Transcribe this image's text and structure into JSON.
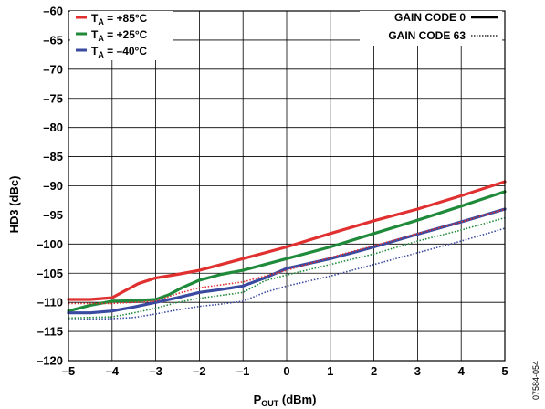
{
  "chart_data": {
    "type": "line",
    "xlabel_main": "P",
    "xlabel_sub": "OUT",
    "xlabel_unit": " (dBm)",
    "ylabel": "HD3 (dBc)",
    "xlim": [
      -5,
      5
    ],
    "ylim": [
      -120,
      -60
    ],
    "x_ticks": [
      -5,
      -4,
      -3,
      -2,
      -1,
      0,
      1,
      2,
      3,
      4,
      5
    ],
    "y_ticks": [
      -120,
      -115,
      -110,
      -105,
      -100,
      -95,
      -90,
      -85,
      -80,
      -75,
      -70,
      -65,
      -60
    ],
    "x_tick_labels": [
      "–5",
      "–4",
      "–3",
      "–2",
      "–1",
      "0",
      "1",
      "2",
      "3",
      "4",
      "5"
    ],
    "y_tick_labels": [
      "–120",
      "–115",
      "–110",
      "–105",
      "–100",
      "–95",
      "–90",
      "–85",
      "–80",
      "–75",
      "–70",
      "–65",
      "–60"
    ],
    "grid": true,
    "legend_temperature": [
      {
        "main": "T",
        "sub": "A",
        "value": " = +85°C",
        "color": "#e03030"
      },
      {
        "main": "T",
        "sub": "A",
        "value": " = +25°C",
        "color": "#1f8a3a"
      },
      {
        "main": "T",
        "sub": "A",
        "value": " = –40°C",
        "color": "#3a4aa0"
      }
    ],
    "legend_gain": [
      {
        "label": "GAIN CODE 0",
        "style": "solid"
      },
      {
        "label": "GAIN CODE 63",
        "style": "dotted"
      }
    ],
    "series": [
      {
        "temp": "+85°C",
        "gain": "GAIN CODE 0",
        "color": "#e03030",
        "style": "solid",
        "x": [
          -5,
          -4.5,
          -4,
          -3.7,
          -3.4,
          -3,
          -2.5,
          -2,
          -1.5,
          -1,
          0,
          1,
          2,
          3,
          4,
          5
        ],
        "y": [
          -109.5,
          -109.5,
          -109.2,
          -108,
          -106.8,
          -105.8,
          -105.2,
          -104.5,
          -103.5,
          -102.5,
          -100.5,
          -98.2,
          -96,
          -94,
          -91.7,
          -89.3
        ]
      },
      {
        "temp": "+25°C",
        "gain": "GAIN CODE 0",
        "color": "#1f8a3a",
        "style": "solid",
        "x": [
          -5,
          -4.5,
          -4,
          -3.5,
          -3,
          -2.7,
          -2.4,
          -2,
          -1.5,
          -1,
          0,
          1,
          2,
          3,
          4,
          5
        ],
        "y": [
          -111.5,
          -110.5,
          -109.8,
          -109.7,
          -109.5,
          -108.7,
          -107.5,
          -106.2,
          -105.2,
          -104.5,
          -102.5,
          -100.5,
          -98.2,
          -95.9,
          -93.5,
          -91
        ]
      },
      {
        "temp": "–40°C",
        "gain": "GAIN CODE 0",
        "color": "#3a4aa0",
        "style": "solid",
        "x": [
          -5,
          -4.5,
          -4,
          -3.5,
          -3,
          -2.5,
          -2,
          -1.5,
          -1,
          -0.5,
          0,
          1,
          2,
          3,
          4,
          5
        ],
        "y": [
          -111.8,
          -111.8,
          -111.5,
          -110.8,
          -110,
          -109.2,
          -108.3,
          -107.8,
          -107.2,
          -105.8,
          -104.2,
          -102.5,
          -100.5,
          -98.3,
          -96.2,
          -94
        ]
      },
      {
        "temp": "+85°C",
        "gain": "GAIN CODE 63",
        "color": "#e03030",
        "style": "dotted",
        "x": [
          -5,
          -4,
          -3.5,
          -3,
          -2.5,
          -2,
          -1.5,
          -1,
          -0.5,
          0,
          1,
          2,
          3,
          4,
          5
        ],
        "y": [
          -110.2,
          -110.2,
          -110,
          -109.8,
          -108.5,
          -107.5,
          -107,
          -106.5,
          -105.5,
          -104.5,
          -102.3,
          -100.3,
          -98.2,
          -96.2,
          -94
        ]
      },
      {
        "temp": "+25°C",
        "gain": "GAIN CODE 63",
        "color": "#1f8a3a",
        "style": "dotted",
        "x": [
          -5,
          -4,
          -3.5,
          -3,
          -2.5,
          -2,
          -1.5,
          -1,
          -0.5,
          0,
          1,
          2,
          3,
          4,
          5
        ],
        "y": [
          -112.7,
          -112.5,
          -111.8,
          -111,
          -110,
          -109.3,
          -108.8,
          -108.3,
          -106.3,
          -105.3,
          -103.5,
          -101.7,
          -99.5,
          -97.6,
          -95.5
        ]
      },
      {
        "temp": "–40°C",
        "gain": "GAIN CODE 63",
        "color": "#3a4aa0",
        "style": "dotted",
        "x": [
          -5,
          -4,
          -3.5,
          -3,
          -2.5,
          -2,
          -1.5,
          -1,
          -0.5,
          0,
          1,
          2,
          3,
          4,
          5
        ],
        "y": [
          -113,
          -112.8,
          -112.6,
          -112,
          -111.3,
          -110.7,
          -110.3,
          -109.8,
          -108.3,
          -107.2,
          -105.5,
          -103.5,
          -101.5,
          -99.5,
          -97.3
        ]
      }
    ]
  },
  "figure_id": "07584-054"
}
